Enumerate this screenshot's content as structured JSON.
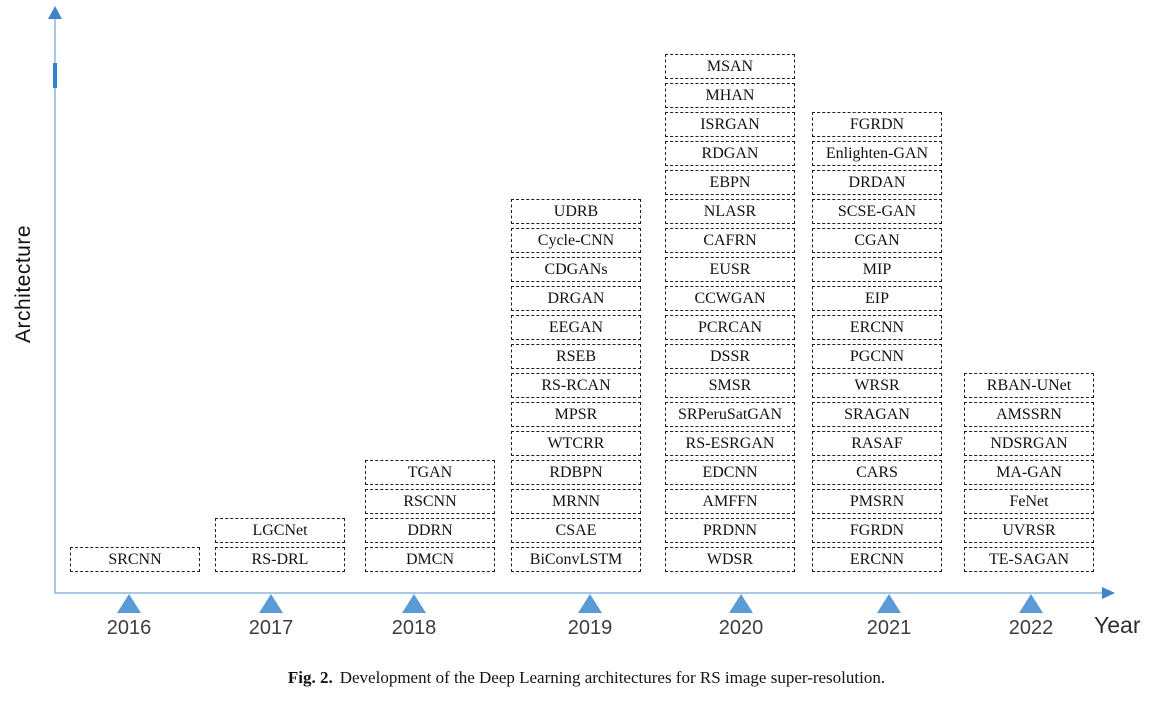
{
  "figure": {
    "y_axis_label": "Architecture",
    "x_axis_label": "Year"
  },
  "caption": {
    "prefix": "Fig. 2.",
    "text": "Development of the Deep Learning architectures for RS image super-resolution."
  },
  "colors": {
    "axis_line": "#aac9e8",
    "arrowhead": "#3d85c6",
    "axis_tick": "#2e83cc",
    "marker_fill": "#5b9bd5",
    "box_border": "#1f1f1f",
    "box_text": "#111111",
    "year_text": "#3d3d3d"
  },
  "chart_data": {
    "type": "timeline",
    "title": "Development of the Deep Learning architectures for RS image super-resolution",
    "xlabel": "Year",
    "ylabel": "Architecture",
    "categories": [
      "2016",
      "2017",
      "2018",
      "2019",
      "2020",
      "2021",
      "2022"
    ],
    "counts_per_year": [
      1,
      2,
      4,
      13,
      18,
      16,
      7
    ],
    "legend": "none",
    "grid": false,
    "series": [
      {
        "year": "2016",
        "architectures": [
          "SRCNN"
        ]
      },
      {
        "year": "2017",
        "architectures": [
          "LGCNet",
          "RS-DRL"
        ]
      },
      {
        "year": "2018",
        "architectures": [
          "TGAN",
          "RSCNN",
          "DDRN",
          "DMCN"
        ]
      },
      {
        "year": "2019",
        "architectures": [
          "UDRB",
          "Cycle-CNN",
          "CDGANs",
          "DRGAN",
          "EEGAN",
          "RSEB",
          "RS-RCAN",
          "MPSR",
          "WTCRR",
          "RDBPN",
          "MRNN",
          "CSAE",
          "BiConvLSTM"
        ]
      },
      {
        "year": "2020",
        "architectures": [
          "MSAN",
          "MHAN",
          "ISRGAN",
          "RDGAN",
          "EBPN",
          "NLASR",
          "CAFRN",
          "EUSR",
          "CCWGAN",
          "PCRCAN",
          "DSSR",
          "SMSR",
          "SRPeruSatGAN",
          "RS-ESRGAN",
          "EDCNN",
          "AMFFN",
          "PRDNN",
          "WDSR"
        ]
      },
      {
        "year": "2021",
        "architectures": [
          "FGRDN",
          "Enlighten-GAN",
          "DRDAN",
          "SCSE-GAN",
          "CGAN",
          "MIP",
          "EIP",
          "ERCNN",
          "PGCNN",
          "WRSR",
          "SRAGAN",
          "RASAF",
          "CARS",
          "PMSRN",
          "FGRDN",
          "ERCNN"
        ]
      },
      {
        "year": "2022",
        "architectures": [
          "RBAN-UNet",
          "AMSSRN",
          "NDSRGAN",
          "MA-GAN",
          "FeNet",
          "UVRSR",
          "TE-SAGAN"
        ]
      }
    ]
  }
}
